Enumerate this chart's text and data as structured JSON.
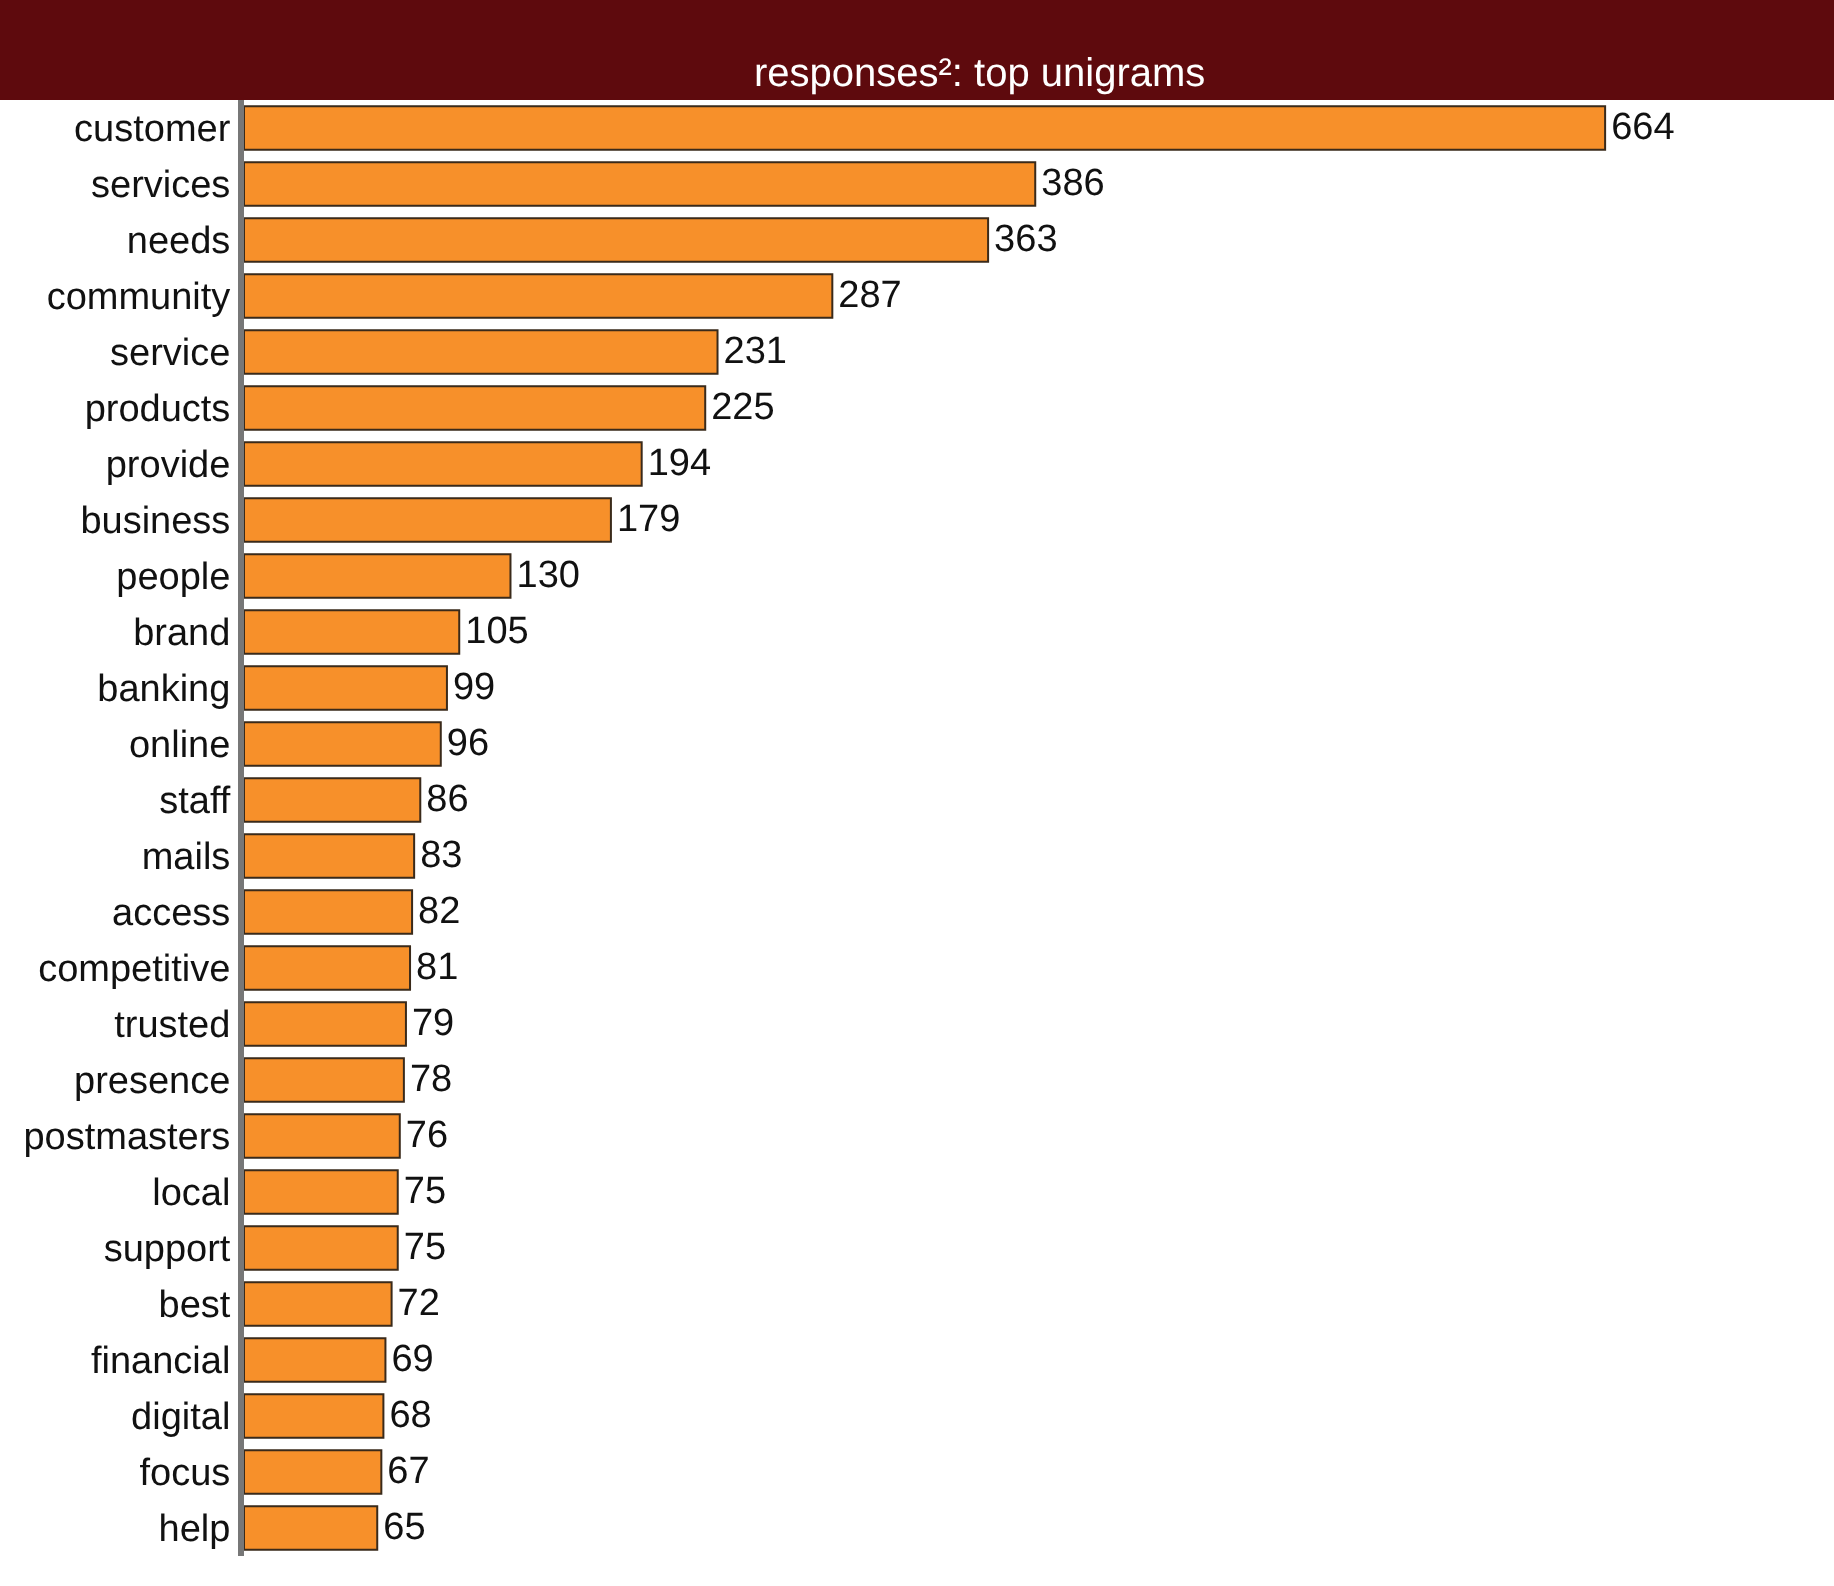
{
  "chart_data": {
    "type": "bar",
    "orientation": "horizontal",
    "title": "responses²: top unigrams",
    "categories": [
      "customer",
      "services",
      "needs",
      "community",
      "service",
      "products",
      "provide",
      "business",
      "people",
      "brand",
      "banking",
      "online",
      "staff",
      "mails",
      "access",
      "competitive",
      "trusted",
      "presence",
      "postmasters",
      "local",
      "support",
      "best",
      "financial",
      "digital",
      "focus",
      "help"
    ],
    "values": [
      664,
      386,
      363,
      287,
      231,
      225,
      194,
      179,
      130,
      105,
      99,
      96,
      86,
      83,
      82,
      81,
      79,
      78,
      76,
      75,
      75,
      72,
      69,
      68,
      67,
      65
    ],
    "color": "#f7902a",
    "data_labels": true,
    "tick_labels": "y"
  }
}
